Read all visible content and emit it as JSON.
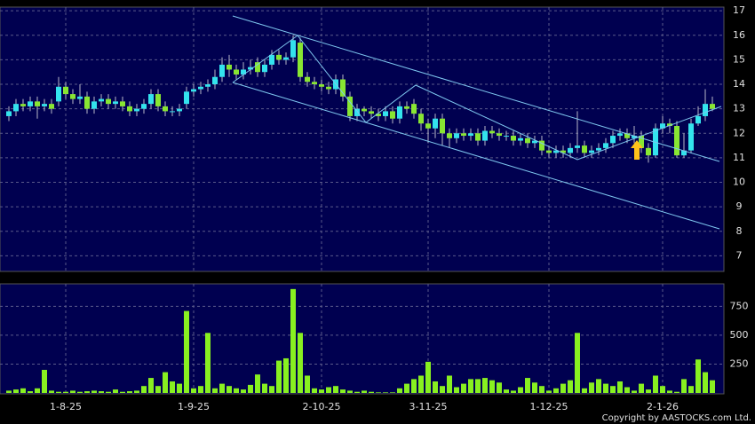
{
  "chart_data": {
    "type": "candlestick",
    "categories": [
      null,
      null,
      null,
      null,
      null,
      null,
      null,
      null,
      "1-8-25",
      null,
      null,
      null,
      null,
      null,
      null,
      null,
      null,
      null,
      null,
      null,
      null,
      null,
      null,
      null,
      null,
      null,
      "1-9-25",
      null,
      null,
      null,
      null,
      null,
      null,
      null,
      null,
      null,
      null,
      null,
      null,
      null,
      null,
      null,
      null,
      null,
      "2-10-25",
      null,
      null,
      null,
      null,
      null,
      null,
      null,
      null,
      null,
      null,
      null,
      null,
      null,
      null,
      "3-11-25",
      null,
      null,
      null,
      null,
      null,
      null,
      null,
      null,
      null,
      null,
      null,
      null,
      null,
      null,
      null,
      null,
      "1-12-25",
      null,
      null,
      null,
      null,
      null,
      null,
      null,
      null,
      null,
      null,
      null,
      null,
      null,
      null,
      null,
      "2-1-26",
      null,
      null,
      null,
      null,
      null,
      null,
      null
    ],
    "open": [
      12.7,
      12.9,
      13.2,
      13.1,
      13.3,
      13.1,
      13.2,
      13.3,
      13.9,
      13.6,
      13.4,
      13.5,
      13.0,
      13.3,
      13.4,
      13.2,
      13.3,
      13.1,
      12.9,
      13.0,
      13.2,
      13.6,
      13.1,
      12.9,
      12.9,
      13.2,
      13.7,
      13.8,
      13.9,
      14.0,
      14.3,
      14.8,
      14.6,
      14.4,
      14.6,
      14.9,
      14.5,
      14.8,
      15.2,
      15.0,
      15.1,
      15.7,
      14.3,
      14.1,
      14.0,
      13.9,
      13.8,
      14.2,
      13.5,
      12.7,
      13.0,
      12.9,
      12.8,
      12.7,
      12.9,
      12.6,
      13.1,
      13.2,
      12.8,
      12.4,
      12.2,
      12.6,
      12.0,
      11.8,
      12.0,
      11.9,
      12.0,
      11.7,
      12.1,
      12.0,
      11.9,
      11.9,
      11.7,
      11.8,
      11.6,
      11.7,
      11.3,
      11.2,
      11.3,
      11.2,
      11.4,
      11.5,
      11.2,
      11.3,
      11.4,
      11.6,
      11.9,
      12.0,
      11.8,
      11.9,
      11.4,
      11.1,
      12.2,
      12.4,
      12.3,
      11.1,
      11.3,
      12.4,
      12.7,
      13.2
    ],
    "high": [
      13.1,
      13.4,
      13.4,
      13.5,
      13.5,
      13.4,
      13.4,
      14.3,
      14.1,
      13.8,
      14.0,
      13.7,
      13.5,
      13.6,
      13.6,
      13.5,
      13.5,
      13.3,
      13.2,
      13.4,
      13.8,
      13.8,
      13.3,
      13.1,
      13.2,
      13.9,
      14.0,
      14.1,
      14.2,
      14.6,
      15.1,
      15.2,
      14.8,
      14.9,
      15.0,
      15.1,
      15.0,
      15.4,
      15.4,
      15.3,
      16.0,
      15.9,
      14.5,
      14.3,
      14.2,
      14.1,
      14.4,
      14.4,
      13.7,
      13.2,
      13.1,
      13.1,
      13.0,
      13.1,
      13.1,
      13.3,
      13.3,
      13.4,
      13.0,
      12.6,
      12.8,
      12.8,
      12.2,
      12.2,
      12.2,
      12.2,
      12.2,
      12.3,
      12.3,
      12.2,
      12.1,
      12.1,
      12.0,
      12.0,
      11.9,
      11.9,
      11.5,
      11.5,
      11.5,
      11.6,
      12.9,
      11.7,
      11.5,
      11.6,
      11.8,
      12.1,
      12.2,
      12.2,
      12.3,
      12.1,
      11.6,
      12.4,
      12.7,
      12.6,
      12.5,
      12.0,
      12.6,
      13.1,
      13.8,
      13.5
    ],
    "low": [
      12.5,
      12.7,
      12.9,
      12.9,
      12.6,
      12.9,
      12.8,
      13.1,
      13.4,
      13.2,
      13.2,
      12.8,
      12.8,
      13.1,
      13.0,
      13.0,
      12.9,
      12.7,
      12.7,
      12.8,
      13.0,
      12.9,
      12.7,
      12.7,
      12.7,
      13.0,
      13.5,
      13.6,
      13.7,
      13.8,
      14.1,
      14.3,
      14.2,
      14.2,
      14.4,
      14.3,
      14.3,
      14.6,
      14.8,
      14.8,
      14.9,
      14.1,
      13.9,
      13.8,
      13.7,
      13.6,
      13.6,
      13.3,
      12.5,
      12.5,
      12.7,
      12.6,
      12.5,
      12.5,
      12.4,
      12.4,
      12.8,
      12.6,
      12.1,
      11.6,
      11.8,
      11.5,
      11.4,
      11.6,
      11.7,
      11.7,
      11.5,
      11.5,
      11.8,
      11.7,
      11.7,
      11.5,
      11.5,
      11.4,
      11.4,
      11.1,
      11.0,
      11.0,
      11.0,
      11.0,
      11.2,
      11.0,
      11.0,
      11.1,
      11.2,
      11.4,
      11.7,
      11.6,
      11.6,
      11.2,
      10.8,
      11.0,
      12.0,
      12.0,
      11.0,
      11.0,
      11.2,
      12.3,
      12.5,
      12.9
    ],
    "close": [
      12.9,
      13.2,
      13.1,
      13.3,
      13.1,
      13.2,
      13.0,
      13.9,
      13.6,
      13.4,
      13.5,
      13.0,
      13.3,
      13.4,
      13.2,
      13.3,
      13.1,
      12.9,
      13.0,
      13.2,
      13.6,
      13.1,
      12.9,
      12.9,
      13.0,
      13.7,
      13.8,
      13.9,
      14.0,
      14.3,
      14.8,
      14.6,
      14.4,
      14.6,
      14.7,
      14.5,
      14.8,
      15.2,
      15.0,
      15.1,
      15.8,
      14.3,
      14.1,
      14.0,
      13.9,
      13.8,
      14.2,
      13.5,
      12.7,
      13.0,
      12.9,
      12.8,
      12.7,
      12.9,
      12.6,
      13.1,
      13.0,
      12.8,
      12.4,
      12.2,
      12.6,
      12.0,
      11.8,
      12.0,
      11.9,
      12.0,
      11.7,
      12.1,
      12.0,
      11.9,
      11.9,
      11.7,
      11.8,
      11.6,
      11.7,
      11.3,
      11.2,
      11.3,
      11.2,
      11.4,
      11.5,
      11.2,
      11.3,
      11.4,
      11.6,
      11.9,
      12.0,
      11.8,
      11.9,
      11.4,
      11.1,
      12.2,
      12.4,
      12.3,
      11.1,
      11.3,
      12.4,
      12.7,
      13.2,
      13.0
    ],
    "volume": [
      20,
      30,
      40,
      15,
      40,
      200,
      20,
      10,
      10,
      20,
      10,
      15,
      20,
      15,
      10,
      30,
      10,
      15,
      20,
      60,
      130,
      60,
      180,
      100,
      80,
      710,
      40,
      60,
      520,
      40,
      80,
      60,
      40,
      30,
      70,
      160,
      80,
      60,
      280,
      300,
      900,
      520,
      150,
      40,
      30,
      50,
      60,
      30,
      20,
      10,
      20,
      10,
      5,
      5,
      5,
      40,
      80,
      120,
      150,
      270,
      100,
      60,
      150,
      50,
      80,
      120,
      120,
      130,
      110,
      90,
      30,
      20,
      50,
      130,
      90,
      60,
      20,
      40,
      80,
      110,
      520,
      40,
      90,
      120,
      80,
      60,
      100,
      50,
      20,
      80,
      30,
      150,
      60,
      20,
      10,
      120,
      60,
      290,
      180,
      110
    ],
    "up_color": "#33e3ee",
    "down_color": "#88e632",
    "volume_color": "#88f020",
    "ylim": [
      6.4,
      17.15
    ],
    "yticks": [
      7,
      8,
      9,
      10,
      11,
      12,
      13,
      14,
      15,
      16,
      17
    ],
    "volume_ylim": [
      0,
      945
    ],
    "volume_yticks": [
      250,
      500,
      750
    ],
    "grid": true
  },
  "copyright": "Copyright by AASTOCKS.com Ltd."
}
